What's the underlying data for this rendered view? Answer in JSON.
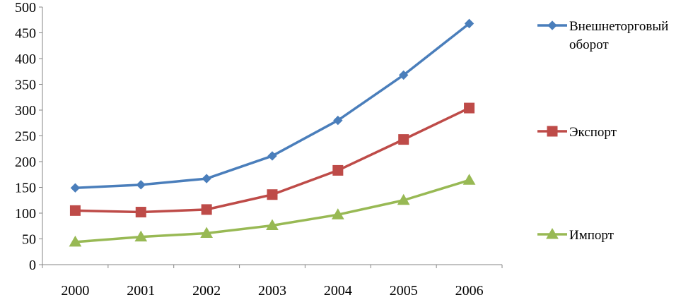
{
  "chart_data": {
    "type": "line",
    "title": "",
    "xlabel": "",
    "ylabel": "",
    "categories": [
      "2000",
      "2001",
      "2002",
      "2003",
      "2004",
      "2005",
      "2006"
    ],
    "ylim": [
      0,
      500
    ],
    "yticks": [
      0,
      50,
      100,
      150,
      200,
      250,
      300,
      350,
      400,
      450,
      500
    ],
    "grid": false,
    "legend_position": "right",
    "series": [
      {
        "name": "Внешнеторговый оборот",
        "legend_lines": [
          "Внешнеторговый",
          "оборот"
        ],
        "color": "#4a7ebb",
        "marker": "diamond",
        "values": [
          149,
          155,
          167,
          211,
          280,
          368,
          468
        ]
      },
      {
        "name": "Экспорт",
        "legend_lines": [
          "Экспорт"
        ],
        "color": "#be4b48",
        "marker": "square",
        "values": [
          105,
          102,
          107,
          136,
          183,
          243,
          304
        ]
      },
      {
        "name": "Импорт",
        "legend_lines": [
          "Импорт"
        ],
        "color": "#98b954",
        "marker": "triangle",
        "values": [
          44,
          54,
          61,
          76,
          97,
          125,
          164
        ]
      }
    ]
  }
}
